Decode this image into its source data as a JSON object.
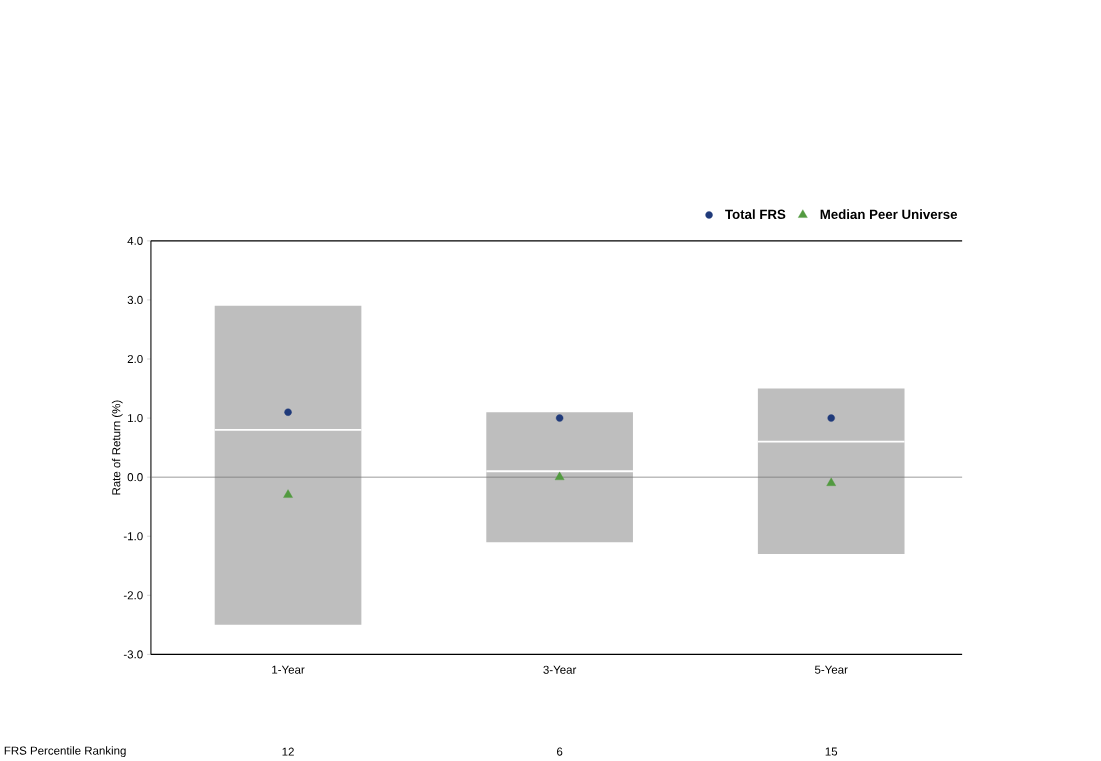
{
  "chart_data": {
    "type": "box",
    "ylabel": "Rate of Return (%)",
    "categories": [
      "1-Year",
      "3-Year",
      "5-Year"
    ],
    "boxes": [
      {
        "low": -2.5,
        "q1": -2.5,
        "median": 0.8,
        "q3": 2.9,
        "high": 2.9
      },
      {
        "low": -1.1,
        "q1": -1.1,
        "median": 0.1,
        "q3": 1.1,
        "high": 1.1
      },
      {
        "low": -1.3,
        "q1": -1.3,
        "median": 0.6,
        "q3": 1.5,
        "high": 1.5
      }
    ],
    "color": "#bebebe",
    "series": [
      {
        "type": "scatter",
        "name": "Total FRS",
        "color": "#1f3a7a",
        "marker": "circle",
        "values": [
          1.1,
          1.0,
          1.0
        ]
      },
      {
        "type": "scatter",
        "name": "Median Peer Universe",
        "color": "#529a40",
        "marker": "triangle",
        "values": [
          -0.3,
          0.0,
          -0.1
        ]
      }
    ],
    "ylim": [
      -3,
      4
    ],
    "yticks": [
      {
        "value": -3,
        "label": "-3.0"
      },
      {
        "value": -2,
        "label": "-2.0"
      },
      {
        "value": -1,
        "label": "-1.0"
      },
      {
        "value": 0,
        "label": "0.0"
      },
      {
        "value": 1,
        "label": "1.0"
      },
      {
        "value": 2,
        "label": "2.0"
      },
      {
        "value": 3,
        "label": "3.0"
      },
      {
        "value": 4,
        "label": "4.0"
      }
    ],
    "ref_lines": [
      {
        "axis": "y",
        "value": 0,
        "color": "#707070"
      }
    ],
    "legend": "top right",
    "annotations": [
      "FRS Percentile Ranking",
      "12",
      "6",
      "15"
    ]
  }
}
